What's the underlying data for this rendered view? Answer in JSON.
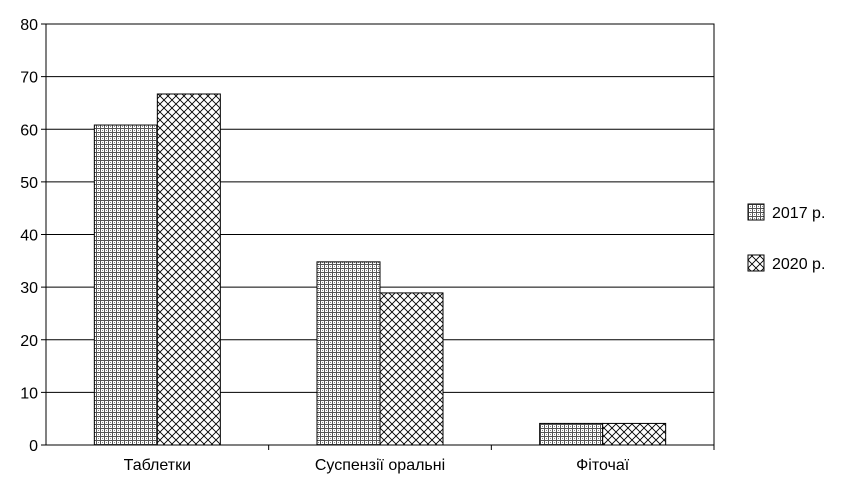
{
  "chart_data": {
    "type": "bar",
    "title": "",
    "xlabel": "",
    "ylabel": "",
    "categories": [
      "Таблетки",
      "Суспензії оральні",
      "Фіточаї"
    ],
    "series": [
      {
        "name": "2017 р.",
        "values": [
          60.8,
          34.8,
          4.1
        ],
        "pattern": "grid"
      },
      {
        "name": "2020 р.",
        "values": [
          66.7,
          28.9,
          4.1
        ],
        "pattern": "crosshatch"
      }
    ],
    "ylim": [
      0,
      80
    ],
    "yticks": [
      0,
      10,
      20,
      30,
      40,
      50,
      60,
      70,
      80
    ],
    "grid": true,
    "legend_position": "right",
    "colors": {
      "bar_stroke": "#000000",
      "pattern_ink": "#000000",
      "background": "#ffffff"
    }
  }
}
